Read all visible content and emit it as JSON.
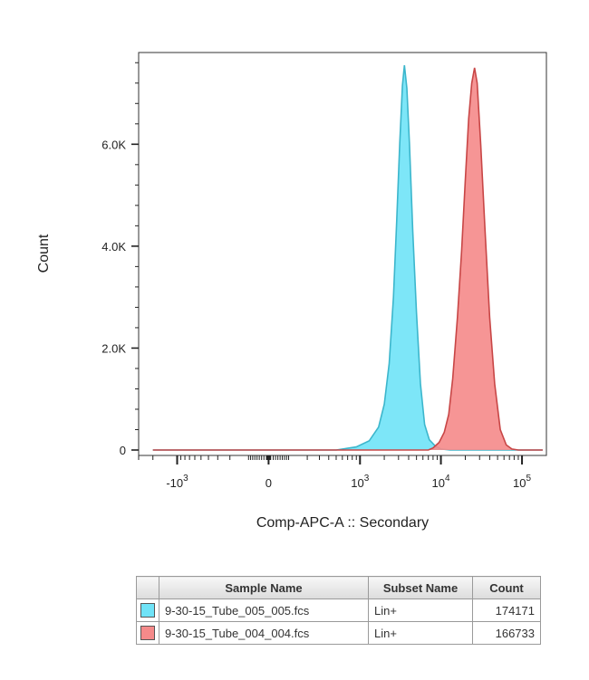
{
  "chart_data": {
    "type": "area",
    "title": "",
    "xlabel": "Comp-APC-A :: Secondary",
    "ylabel": "Count",
    "x_scale": "biexponential",
    "xlim": [
      -3000,
      200000
    ],
    "ylim": [
      0,
      7800
    ],
    "x_ticks": [
      {
        "value": -1000,
        "base": "-10",
        "exp": "3"
      },
      {
        "value": 0,
        "base": "0",
        "exp": ""
      },
      {
        "value": 1000,
        "base": "10",
        "exp": "3"
      },
      {
        "value": 10000,
        "base": "10",
        "exp": "4"
      },
      {
        "value": 100000,
        "base": "10",
        "exp": "5"
      }
    ],
    "y_ticks": [
      {
        "value": 0,
        "label": "0"
      },
      {
        "value": 2000,
        "label": "2.0K"
      },
      {
        "value": 4000,
        "label": "4.0K"
      },
      {
        "value": 6000,
        "label": "6.0K"
      }
    ],
    "grid": false,
    "legend": "table-below",
    "series": [
      {
        "fill": "#6fe3f7",
        "stroke": "#3cb6cc",
        "points": [
          [
            -2000,
            0
          ],
          [
            0,
            0
          ],
          [
            500,
            0
          ],
          [
            900,
            60
          ],
          [
            1300,
            180
          ],
          [
            1700,
            450
          ],
          [
            2000,
            900
          ],
          [
            2300,
            1700
          ],
          [
            2600,
            3000
          ],
          [
            2850,
            4500
          ],
          [
            3100,
            6000
          ],
          [
            3350,
            7150
          ],
          [
            3550,
            7550
          ],
          [
            3800,
            7100
          ],
          [
            4100,
            6000
          ],
          [
            4500,
            4300
          ],
          [
            5000,
            2700
          ],
          [
            5600,
            1300
          ],
          [
            6300,
            500
          ],
          [
            7200,
            200
          ],
          [
            8500,
            80
          ],
          [
            10000,
            20
          ],
          [
            13000,
            0
          ],
          [
            180000,
            0
          ]
        ]
      },
      {
        "fill": "#f58a8a",
        "stroke": "#c84646",
        "points": [
          [
            -2000,
            0
          ],
          [
            7000,
            0
          ],
          [
            8000,
            40
          ],
          [
            9500,
            150
          ],
          [
            11000,
            350
          ],
          [
            12500,
            700
          ],
          [
            14000,
            1400
          ],
          [
            16000,
            2600
          ],
          [
            18000,
            3900
          ],
          [
            20000,
            5300
          ],
          [
            22000,
            6500
          ],
          [
            24000,
            7200
          ],
          [
            26000,
            7500
          ],
          [
            28000,
            7200
          ],
          [
            31000,
            6000
          ],
          [
            35000,
            4300
          ],
          [
            40000,
            2600
          ],
          [
            46000,
            1300
          ],
          [
            54000,
            400
          ],
          [
            64000,
            100
          ],
          [
            75000,
            20
          ],
          [
            90000,
            0
          ],
          [
            180000,
            0
          ]
        ]
      }
    ]
  },
  "legend_table": {
    "headers": [
      "",
      "Sample Name",
      "Subset Name",
      "Count"
    ],
    "rows": [
      {
        "color": "#6fe3f7",
        "sample": "9-30-15_Tube_005_005.fcs",
        "subset": "Lin+",
        "count": "174171"
      },
      {
        "color": "#f58a8a",
        "sample": "9-30-15_Tube_004_004.fcs",
        "subset": "Lin+",
        "count": "166733"
      }
    ]
  }
}
